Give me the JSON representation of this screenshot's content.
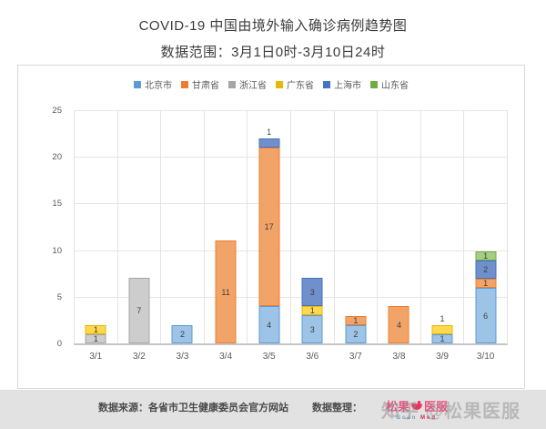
{
  "header": {
    "title": "COVID-19 中国由境外输入确诊病例趋势图",
    "subtitle": "数据范围：3月1日0时-3月10日24时"
  },
  "chart_data": {
    "type": "bar",
    "variant": "stacked",
    "title": "COVID-19 中国由境外输入确诊病例趋势图",
    "subtitle": "数据范围：3月1日0时-3月10日24时",
    "categories": [
      "3/1",
      "3/2",
      "3/3",
      "3/4",
      "3/5",
      "3/6",
      "3/7",
      "3/8",
      "3/9",
      "3/10"
    ],
    "series": [
      {
        "name": "北京市",
        "fill": "#9dc3e6",
        "edge": "#5b9bd5",
        "values": [
          0,
          0,
          2,
          0,
          4,
          3,
          2,
          0,
          1,
          6
        ]
      },
      {
        "name": "甘肃省",
        "fill": "#f2a468",
        "edge": "#ed7d31",
        "values": [
          0,
          0,
          0,
          11,
          17,
          0,
          1,
          4,
          0,
          1
        ]
      },
      {
        "name": "浙江省",
        "fill": "#cdcdcd",
        "edge": "#a5a5a5",
        "values": [
          1,
          7,
          0,
          0,
          0,
          0,
          0,
          0,
          0,
          0
        ]
      },
      {
        "name": "广东省",
        "fill": "#ffd84f",
        "edge": "#e6b800",
        "values": [
          1,
          0,
          0,
          0,
          0,
          1,
          0,
          0,
          1,
          0
        ]
      },
      {
        "name": "上海市",
        "fill": "#7090cb",
        "edge": "#4472c4",
        "values": [
          0,
          0,
          0,
          0,
          1,
          3,
          0,
          0,
          0,
          2
        ]
      },
      {
        "name": "山东省",
        "fill": "#a8cd82",
        "edge": "#70ad47",
        "values": [
          0,
          0,
          0,
          0,
          0,
          0,
          0,
          0,
          0,
          1
        ]
      }
    ],
    "totals": [
      2,
      7,
      2,
      11,
      22,
      7,
      3,
      4,
      2,
      10
    ],
    "y_ticks": [
      0,
      5,
      10,
      15,
      20,
      25
    ],
    "ylim": [
      0,
      25
    ],
    "grid": true,
    "legend_position": "top",
    "labels_above": [
      {
        "category": "3/5",
        "series": "上海市"
      },
      {
        "category": "3/9",
        "series": "广东省"
      }
    ]
  },
  "footer": {
    "source_label": "数据来源：各省市卫生健康委员会官方网站",
    "organizer_label": "数据整理：",
    "logo": {
      "text_left": "松果",
      "text_right": "医服",
      "caption_scan": "Scan",
      "caption_med": "Med"
    },
    "watermark": "知乎 @松果医服"
  }
}
